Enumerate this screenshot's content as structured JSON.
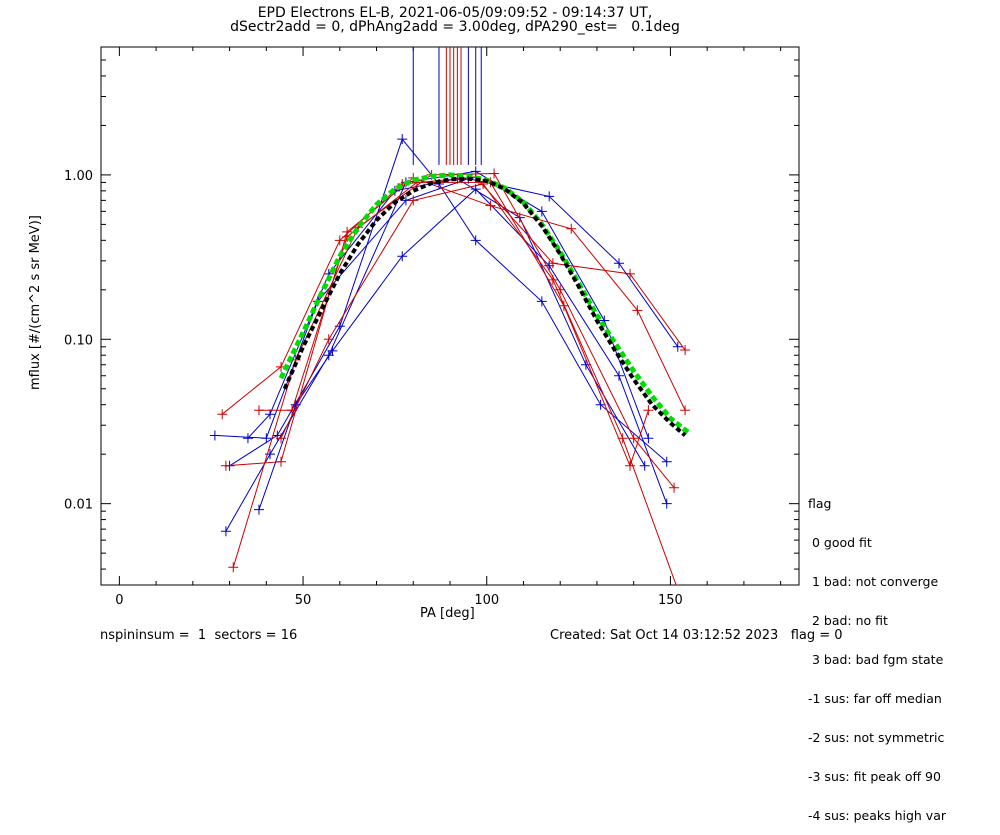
{
  "title_line1": "EPD Electrons EL-B, 2021-06-05/09:09:52 - 09:14:37 UT,",
  "title_line2": "dSectr2add = 0, dPhAng2add = 3.00deg, dPA290_est=   0.1deg",
  "footer": {
    "left": "nspininsum =  1  sectors = 16",
    "right": "Created: Sat Oct 14 03:12:52 2023   flag = 0"
  },
  "legend": {
    "title": "flag",
    "items": [
      " 0 good fit",
      " 1 bad: not converge",
      " 2 bad: no fit",
      " 3 bad: bad fgm state",
      "-1 sus: far off median",
      "-2 sus: not symmetric",
      "-3 sus: fit peak off 90",
      "-4 sus: peaks high var"
    ]
  },
  "chart_data": {
    "type": "line",
    "title": "EPD Electrons EL-B, 2021-06-05/09:09:52 - 09:14:37 UT,",
    "subtitle": "dSectr2add = 0, dPhAng2add = 3.00deg, dPA290_est=   0.1deg",
    "xlabel": "PA [deg]",
    "ylabel": "mflux [#/(cm^2 s sr MeV)]",
    "xlim": [
      -5,
      185
    ],
    "ylim": [
      0.0032,
      6.0
    ],
    "yscale": "log",
    "xticks": [
      0,
      50,
      100,
      150
    ],
    "yticks": [
      0.01,
      0.1,
      1.0
    ],
    "ytick_labels": [
      "0.01",
      "0.10",
      "1.00"
    ],
    "grid": false,
    "colors": {
      "blue": "#0000cc",
      "red": "#cc0000",
      "black": "#000000",
      "green": "#00dd00"
    },
    "vertical_markers": {
      "from": 1.15,
      "blue_x": [
        80,
        87,
        95,
        97,
        98.5
      ],
      "red_x": [
        89,
        90,
        91,
        92,
        93
      ]
    },
    "series": [
      {
        "color": "blue",
        "x": [
          26,
          40,
          54,
          78,
          95,
          117,
          136,
          152
        ],
        "y": [
          0.026,
          0.025,
          0.17,
          0.7,
          0.95,
          0.74,
          0.29,
          0.09
        ]
      },
      {
        "color": "blue",
        "x": [
          29,
          41,
          57,
          78,
          97,
          115,
          132,
          144
        ],
        "y": [
          0.0068,
          0.02,
          0.08,
          0.9,
          1.05,
          0.6,
          0.13,
          0.025
        ]
      },
      {
        "color": "blue",
        "x": [
          30,
          43,
          60,
          77,
          87,
          97,
          115,
          131,
          149
        ],
        "y": [
          0.017,
          0.026,
          0.12,
          1.65,
          0.88,
          0.4,
          0.17,
          0.04,
          0.018
        ]
      },
      {
        "color": "blue",
        "x": [
          35,
          41,
          57,
          75,
          92,
          109,
          127,
          143
        ],
        "y": [
          0.025,
          0.035,
          0.25,
          0.8,
          0.95,
          0.55,
          0.07,
          0.017
        ]
      },
      {
        "color": "blue",
        "x": [
          38,
          48,
          58,
          77,
          97,
          117,
          136,
          149
        ],
        "y": [
          0.0092,
          0.04,
          0.085,
          0.32,
          0.82,
          0.28,
          0.06,
          0.01
        ]
      },
      {
        "color": "red",
        "x": [
          28,
          44,
          60,
          77,
          97,
          118,
          139,
          154
        ],
        "y": [
          0.035,
          0.068,
          0.4,
          0.88,
          0.97,
          0.29,
          0.25,
          0.086
        ]
      },
      {
        "color": "red",
        "x": [
          29,
          44,
          62,
          80,
          101,
          123,
          141,
          154
        ],
        "y": [
          0.017,
          0.018,
          0.45,
          0.96,
          0.65,
          0.47,
          0.15,
          0.037
        ]
      },
      {
        "color": "red",
        "x": [
          31,
          48,
          65,
          85,
          102,
          120,
          140,
          151
        ],
        "y": [
          0.0041,
          0.075,
          0.48,
          1.0,
          1.02,
          0.2,
          0.025,
          0.0125
        ]
      },
      {
        "color": "red",
        "x": [
          44,
          57,
          80,
          99,
          118,
          137,
          152
        ],
        "y": [
          0.025,
          0.1,
          0.7,
          0.88,
          0.23,
          0.025,
          0.003
        ]
      },
      {
        "color": "red",
        "x": [
          38,
          47,
          62,
          81,
          101,
          121,
          139,
          144
        ],
        "y": [
          0.037,
          0.037,
          0.42,
          0.9,
          0.9,
          0.16,
          0.017,
          0.037
        ]
      }
    ],
    "fits": [
      {
        "color": "green",
        "x": [
          44,
          50,
          55,
          60,
          65,
          70,
          75,
          80,
          85,
          90,
          95,
          100,
          105,
          110,
          115,
          120,
          125,
          130,
          135,
          140,
          145,
          150,
          155
        ],
        "y": [
          0.058,
          0.11,
          0.19,
          0.32,
          0.48,
          0.66,
          0.82,
          0.93,
          0.98,
          1.0,
          0.98,
          0.93,
          0.83,
          0.68,
          0.5,
          0.34,
          0.22,
          0.14,
          0.094,
          0.064,
          0.045,
          0.033,
          0.027
        ]
      },
      {
        "color": "black",
        "x": [
          45,
          50,
          55,
          60,
          65,
          70,
          75,
          80,
          85,
          90,
          95,
          100,
          105,
          110,
          115,
          120,
          125,
          130,
          135,
          140,
          145,
          150,
          154
        ],
        "y": [
          0.05,
          0.09,
          0.15,
          0.25,
          0.38,
          0.53,
          0.68,
          0.8,
          0.89,
          0.94,
          0.95,
          0.92,
          0.82,
          0.67,
          0.49,
          0.33,
          0.21,
          0.13,
          0.085,
          0.057,
          0.04,
          0.031,
          0.026
        ]
      }
    ]
  }
}
